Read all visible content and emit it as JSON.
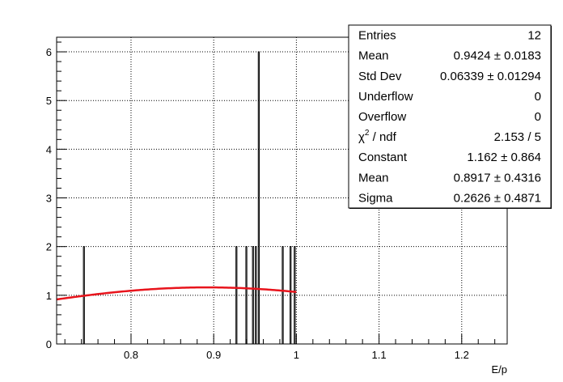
{
  "chart_data": {
    "type": "bar",
    "subtype": "histogram",
    "title": "",
    "xlabel": "E/p",
    "ylabel": "",
    "xlim": [
      0.71,
      1.255
    ],
    "ylim": [
      0,
      6.3
    ],
    "grid": true,
    "x_ticks": [
      0.8,
      0.9,
      1.0,
      1.1,
      1.2
    ],
    "x_tick_labels": [
      "0.8",
      "0.9",
      "1",
      "1.1",
      "1.2"
    ],
    "y_ticks": [
      0,
      1,
      2,
      3,
      4,
      5,
      6
    ],
    "y_tick_labels": [
      "0",
      "1",
      "2",
      "3",
      "4",
      "5",
      "6"
    ],
    "bins": [
      {
        "x": 0.743,
        "count": 2
      },
      {
        "x": 0.9275,
        "count": 2
      },
      {
        "x": 0.9395,
        "count": 2
      },
      {
        "x": 0.9475,
        "count": 2
      },
      {
        "x": 0.951,
        "count": 2
      },
      {
        "x": 0.9545,
        "count": 6
      },
      {
        "x": 0.9835,
        "count": 2
      },
      {
        "x": 0.993,
        "count": 2
      },
      {
        "x": 0.998,
        "count": 2
      }
    ],
    "fit": {
      "function": "gaus",
      "constant": 1.162,
      "mean": 0.8917,
      "sigma": 0.2626,
      "x_range": [
        0.71,
        1.0
      ],
      "color": "#e8141c"
    },
    "stats_box": [
      {
        "label": "Entries",
        "value": "12",
        "sup": ""
      },
      {
        "label": "Mean",
        "value": "0.9424 ± 0.0183",
        "sup": ""
      },
      {
        "label": "Std Dev",
        "value": "0.06339 ± 0.01294",
        "sup": ""
      },
      {
        "label": "Underflow",
        "value": "0",
        "sup": ""
      },
      {
        "label": "Overflow",
        "value": "0",
        "sup": ""
      },
      {
        "label": "χ",
        "value": "2.153 / 5",
        "sup": "2",
        "label_suffix": " / ndf"
      },
      {
        "label": "Constant",
        "value": "1.162 ± 0.864",
        "sup": ""
      },
      {
        "label": "Mean",
        "value": "0.8917 ± 0.4316",
        "sup": ""
      },
      {
        "label": "Sigma",
        "value": "0.2626 ± 0.4871",
        "sup": ""
      }
    ]
  }
}
